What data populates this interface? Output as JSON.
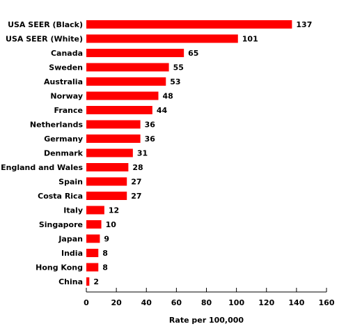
{
  "chart_data": {
    "type": "bar",
    "orientation": "horizontal",
    "categories": [
      "USA SEER (Black)",
      "USA SEER (White)",
      "Canada",
      "Sweden",
      "Australia",
      "Norway",
      "France",
      "Netherlands",
      "Germany",
      "Denmark",
      "England and Wales",
      "Spain",
      "Costa Rica",
      "Italy",
      "Singapore",
      "Japan",
      "India",
      "Hong Kong",
      "China"
    ],
    "values": [
      137,
      101,
      65,
      55,
      53,
      48,
      44,
      36,
      36,
      31,
      28,
      27,
      27,
      12,
      10,
      9,
      8,
      8,
      2
    ],
    "xlabel": "Rate per 100,000",
    "xlim": [
      0,
      160
    ],
    "xticks": [
      0,
      20,
      40,
      60,
      80,
      100,
      120,
      140,
      160
    ],
    "grid": false,
    "bar_color": "#ff0000"
  }
}
